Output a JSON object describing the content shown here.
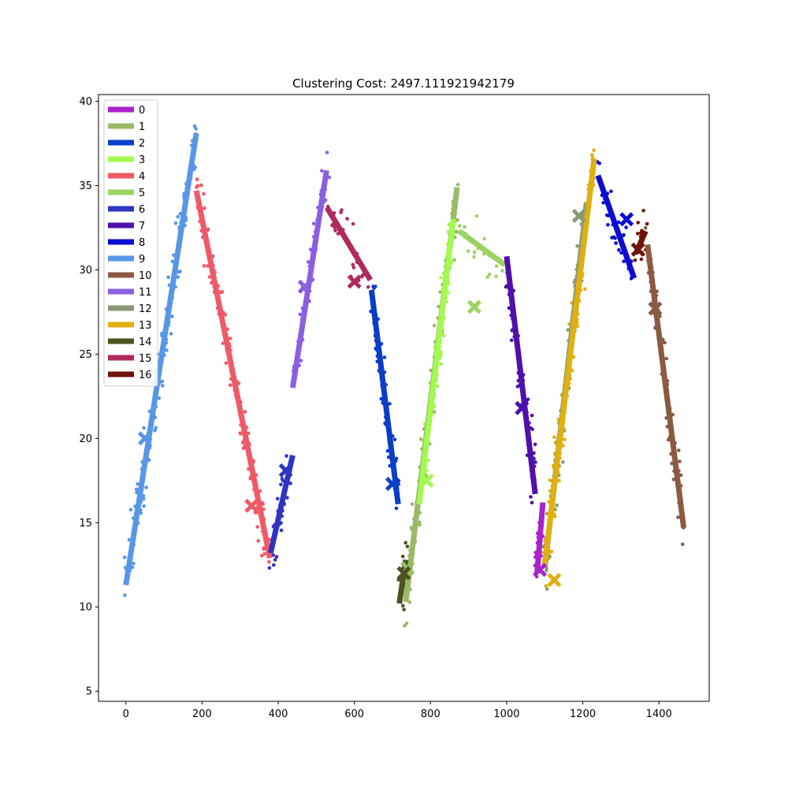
{
  "chart_data": {
    "type": "scatter",
    "title": "Clustering Cost: 2497.111921942179",
    "xlabel": "",
    "ylabel": "",
    "xlim": [
      -72,
      1532
    ],
    "ylim": [
      4.4,
      40.4
    ],
    "xticks": [
      0,
      200,
      400,
      600,
      800,
      1000,
      1200,
      1400
    ],
    "yticks": [
      5,
      10,
      15,
      20,
      25,
      30,
      35,
      40
    ],
    "legend_position": "upper-left",
    "clusters": [
      {
        "name": "0",
        "color": "#aa22cc",
        "segment": [
          [
            1080,
            12.0
          ],
          [
            1095,
            16.2
          ]
        ],
        "center": [
          1087,
          12.2
        ]
      },
      {
        "name": "1",
        "color": "#9aba66",
        "segment": [
          [
            735,
            10.3
          ],
          [
            870,
            34.9
          ]
        ],
        "center": [
          740,
          12.3
        ]
      },
      {
        "name": "2",
        "color": "#0a3ec8",
        "segment": [
          [
            645,
            28.8
          ],
          [
            715,
            16.1
          ]
        ],
        "center": [
          700,
          17.3
        ]
      },
      {
        "name": "3",
        "color": "#a3f94f",
        "segment": [
          [
            770,
            16.1
          ],
          [
            860,
            33.0
          ]
        ],
        "center": [
          790,
          17.5
        ]
      },
      {
        "name": "4",
        "color": "#ef5a68",
        "segment": [
          [
            185,
            34.7
          ],
          [
            378,
            12.9
          ]
        ],
        "center": [
          330,
          16.0
        ]
      },
      {
        "name": "5",
        "color": "#9bd360",
        "segment": [
          [
            875,
            32.3
          ],
          [
            995,
            30.3
          ]
        ],
        "center": [
          915,
          27.8
        ]
      },
      {
        "name": "6",
        "color": "#2f35c0",
        "segment": [
          [
            380,
            13.2
          ],
          [
            438,
            19.0
          ]
        ],
        "center": [
          420,
          18.1
        ]
      },
      {
        "name": "7",
        "color": "#5010ab",
        "segment": [
          [
            1000,
            30.8
          ],
          [
            1075,
            16.7
          ]
        ],
        "center": [
          1040,
          21.8
        ]
      },
      {
        "name": "8",
        "color": "#0c0cd2",
        "segment": [
          [
            1240,
            35.6
          ],
          [
            1335,
            29.5
          ]
        ],
        "center": [
          1315,
          33.0
        ]
      },
      {
        "name": "9",
        "color": "#5896e7",
        "segment": [
          [
            0,
            11.3
          ],
          [
            185,
            38.1
          ]
        ],
        "center": [
          50,
          20.0
        ]
      },
      {
        "name": "10",
        "color": "#8a5a43",
        "segment": [
          [
            1370,
            31.5
          ],
          [
            1465,
            14.7
          ]
        ],
        "center": [
          1390,
          27.7
        ]
      },
      {
        "name": "11",
        "color": "#8a5fe0",
        "segment": [
          [
            438,
            23.0
          ],
          [
            527,
            35.9
          ]
        ],
        "center": [
          470,
          29.0
        ]
      },
      {
        "name": "12",
        "color": "#8a9a78",
        "segment": [
          [
            1100,
            12.3
          ],
          [
            1210,
            34.0
          ]
        ],
        "center": [
          1190,
          33.2
        ]
      },
      {
        "name": "13",
        "color": "#e0b010",
        "segment": [
          [
            1100,
            12.5
          ],
          [
            1230,
            36.6
          ]
        ],
        "center": [
          1125,
          11.6
        ]
      },
      {
        "name": "14",
        "color": "#4d5220",
        "segment": [
          [
            718,
            10.2
          ],
          [
            735,
            12.8
          ]
        ],
        "center": [
          730,
          12.0
        ]
      },
      {
        "name": "15",
        "color": "#b02a5e",
        "segment": [
          [
            528,
            33.7
          ],
          [
            642,
            29.4
          ]
        ],
        "center": [
          600,
          29.3
        ]
      },
      {
        "name": "16",
        "color": "#6e1408",
        "segment": [
          [
            1340,
            31.0
          ],
          [
            1365,
            32.3
          ]
        ],
        "center": [
          1345,
          31.2
        ]
      }
    ]
  }
}
